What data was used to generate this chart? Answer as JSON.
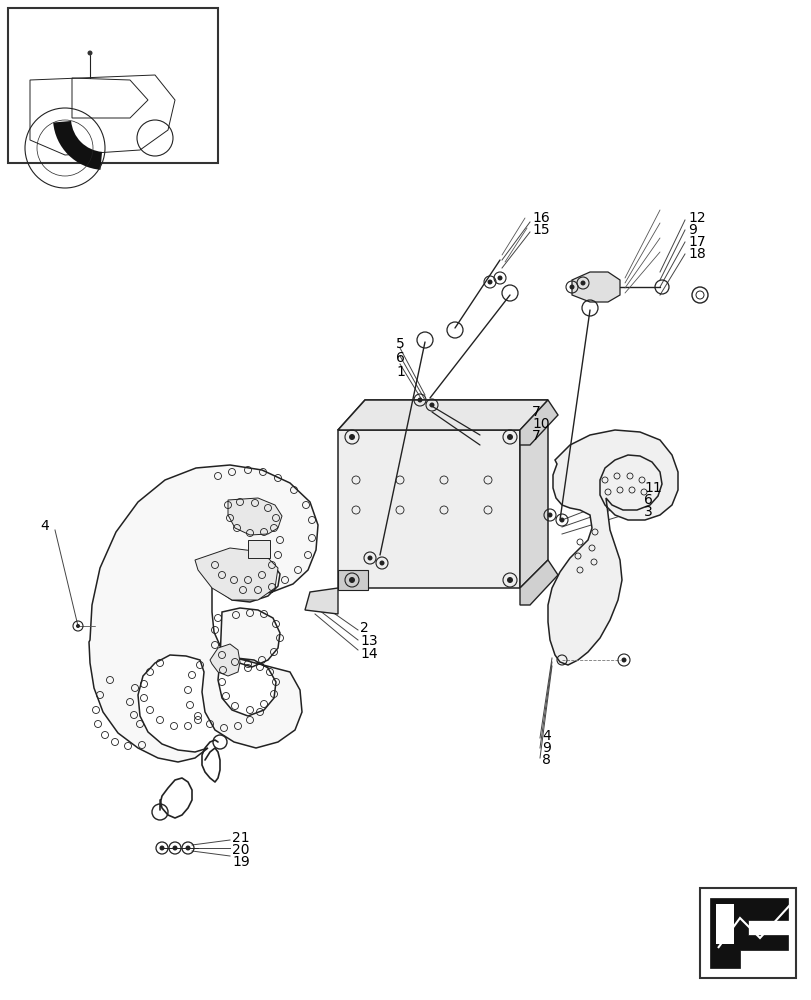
{
  "bg_color": "#ffffff",
  "line_color": "#222222",
  "label_color": "#000000",
  "fig_width": 8.12,
  "fig_height": 10.0
}
